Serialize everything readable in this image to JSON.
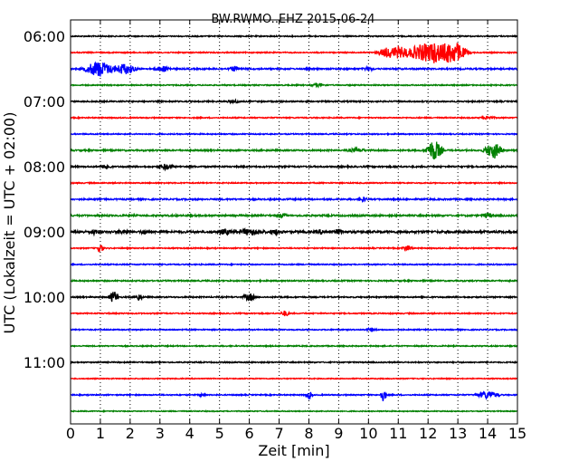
{
  "chart_data": {
    "type": "line",
    "title": "BW.RWMO..EHZ 2015-06-24",
    "xlabel": "Zeit  [min]",
    "ylabel": "UTC (Lokalzeit = UTC + 02:00)",
    "xlim": [
      0,
      15
    ],
    "x_ticks": [
      "0",
      "1",
      "2",
      "3",
      "4",
      "5",
      "6",
      "7",
      "8",
      "9",
      "10",
      "11",
      "12",
      "13",
      "14",
      "15"
    ],
    "y_ticks": [
      "06:00",
      "07:00",
      "08:00",
      "09:00",
      "10:00",
      "11:00"
    ],
    "grid": "vertical dotted",
    "colors": [
      "#000000",
      "#ff0000",
      "#0000ff",
      "#008000"
    ],
    "series": [
      {
        "values": [],
        "color": "#000000",
        "noise": 0.6,
        "events": []
      },
      {
        "values": [],
        "color": "#ff0000",
        "noise": 0.6,
        "events": [
          [
            10.6,
            5,
            0.4
          ],
          [
            11.0,
            6,
            0.4
          ],
          [
            11.7,
            8,
            0.7
          ],
          [
            12.2,
            9,
            0.5
          ],
          [
            12.7,
            9,
            0.5
          ],
          [
            13.0,
            7,
            0.5
          ]
        ]
      },
      {
        "values": [],
        "color": "#0000ff",
        "noise": 0.8,
        "events": [
          [
            0.95,
            9,
            0.6
          ],
          [
            1.8,
            6,
            0.5
          ],
          [
            3.1,
            3,
            0.3
          ],
          [
            5.5,
            2.5,
            0.2
          ],
          [
            10.0,
            2,
            0.2
          ]
        ]
      },
      {
        "values": [],
        "color": "#008000",
        "noise": 0.6,
        "events": [
          [
            8.3,
            1.5,
            0.3
          ]
        ]
      },
      {
        "values": [],
        "color": "#000000",
        "noise": 0.7,
        "events": [
          [
            5.5,
            1.5,
            0.3
          ]
        ]
      },
      {
        "values": [],
        "color": "#ff0000",
        "noise": 0.6,
        "events": [
          [
            14.0,
            1.5,
            0.3
          ]
        ]
      },
      {
        "values": [],
        "color": "#0000ff",
        "noise": 0.6,
        "events": []
      },
      {
        "values": [],
        "color": "#008000",
        "noise": 0.8,
        "events": [
          [
            9.6,
            2,
            0.4
          ],
          [
            12.2,
            12,
            0.35
          ],
          [
            14.2,
            9,
            0.4
          ]
        ]
      },
      {
        "values": [],
        "color": "#000000",
        "noise": 0.8,
        "events": [
          [
            1.2,
            3,
            0.2
          ],
          [
            3.2,
            3,
            0.3
          ]
        ]
      },
      {
        "values": [],
        "color": "#ff0000",
        "noise": 0.6,
        "events": []
      },
      {
        "values": [],
        "color": "#0000ff",
        "noise": 0.8,
        "events": [
          [
            9.8,
            2.5,
            0.2
          ]
        ]
      },
      {
        "values": [],
        "color": "#008000",
        "noise": 0.9,
        "events": [
          [
            7.1,
            2,
            0.2
          ],
          [
            14.0,
            2.5,
            0.2
          ]
        ]
      },
      {
        "values": [],
        "color": "#000000",
        "noise": 1.2,
        "events": [
          [
            0.8,
            2,
            0.3
          ],
          [
            1.8,
            2,
            0.3
          ],
          [
            2.5,
            2,
            0.2
          ],
          [
            5.2,
            2.5,
            0.3
          ],
          [
            6.0,
            3,
            0.6
          ],
          [
            6.9,
            2,
            0.3
          ],
          [
            8.4,
            2,
            0.2
          ],
          [
            9.0,
            2,
            0.2
          ]
        ]
      },
      {
        "values": [],
        "color": "#ff0000",
        "noise": 0.6,
        "events": [
          [
            1.0,
            5,
            0.15
          ],
          [
            11.3,
            3,
            0.2
          ]
        ]
      },
      {
        "values": [],
        "color": "#0000ff",
        "noise": 0.6,
        "events": []
      },
      {
        "values": [],
        "color": "#008000",
        "noise": 0.7,
        "events": []
      },
      {
        "values": [],
        "color": "#000000",
        "noise": 0.7,
        "events": [
          [
            1.45,
            7,
            0.2
          ],
          [
            2.3,
            4,
            0.15
          ],
          [
            6.0,
            4,
            0.25
          ]
        ]
      },
      {
        "values": [],
        "color": "#ff0000",
        "noise": 0.6,
        "events": [
          [
            7.2,
            3,
            0.2
          ]
        ]
      },
      {
        "values": [],
        "color": "#0000ff",
        "noise": 0.6,
        "events": [
          [
            10.1,
            2,
            0.2
          ]
        ]
      },
      {
        "values": [],
        "color": "#008000",
        "noise": 0.6,
        "events": []
      },
      {
        "values": [],
        "color": "#000000",
        "noise": 0.6,
        "events": []
      },
      {
        "values": [],
        "color": "#ff0000",
        "noise": 0.5,
        "events": []
      },
      {
        "values": [],
        "color": "#0000ff",
        "noise": 0.6,
        "events": [
          [
            4.4,
            2,
            0.15
          ],
          [
            8.0,
            4,
            0.15
          ],
          [
            10.5,
            7,
            0.15
          ],
          [
            14.0,
            4,
            0.5
          ]
        ]
      },
      {
        "values": [],
        "color": "#008000",
        "noise": 0.5,
        "events": []
      }
    ]
  }
}
